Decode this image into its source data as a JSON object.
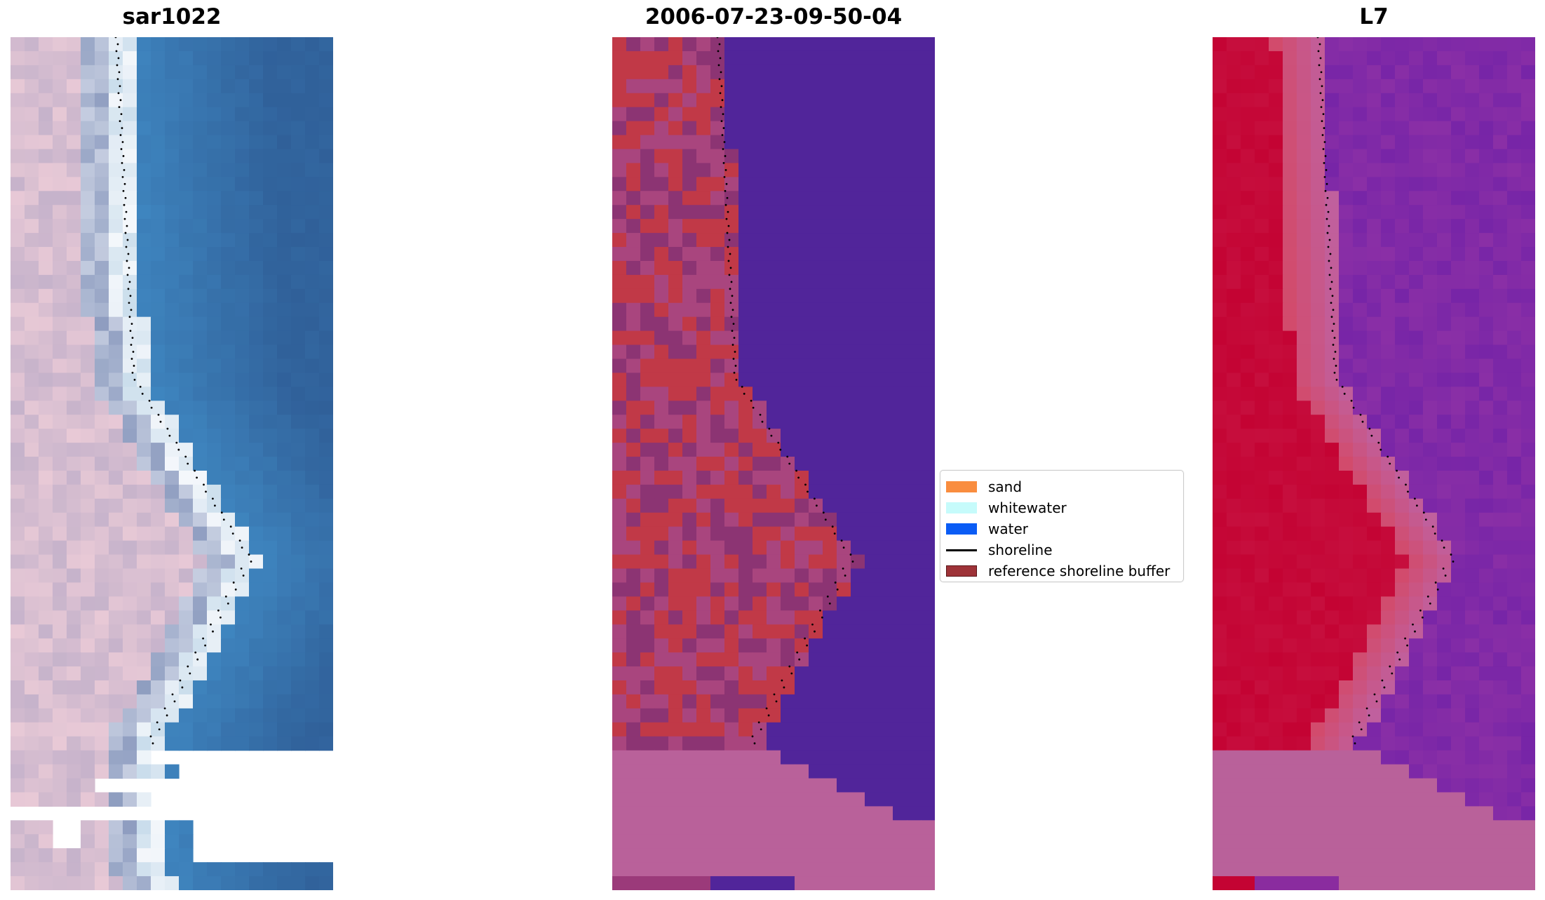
{
  "panels": [
    {
      "title": "sar1022",
      "kind": "rgb"
    },
    {
      "title": "2006-07-23-09-50-04",
      "kind": "classified"
    },
    {
      "title": "L7",
      "kind": "mndwi"
    }
  ],
  "legend": {
    "items": [
      {
        "label": "sand",
        "color": "#f98d3f",
        "type": "patch"
      },
      {
        "label": "whitewater",
        "color": "#c6fbfb",
        "type": "patch"
      },
      {
        "label": "water",
        "color": "#0a5cf5",
        "type": "patch"
      },
      {
        "label": "shoreline",
        "color": "#000000",
        "type": "line"
      },
      {
        "label": "reference shoreline buffer",
        "color": "#9e3338",
        "type": "patch"
      }
    ]
  },
  "colors": {
    "buffer_pink": "#b9619a",
    "water_purple": "#51259a",
    "classified_red": "#c13947",
    "land_red": "#c40333",
    "mndwi_purple": "#7b2aa6",
    "rgb_water": "#3a7bbf",
    "rgb_sand": "#e7c6d4"
  }
}
